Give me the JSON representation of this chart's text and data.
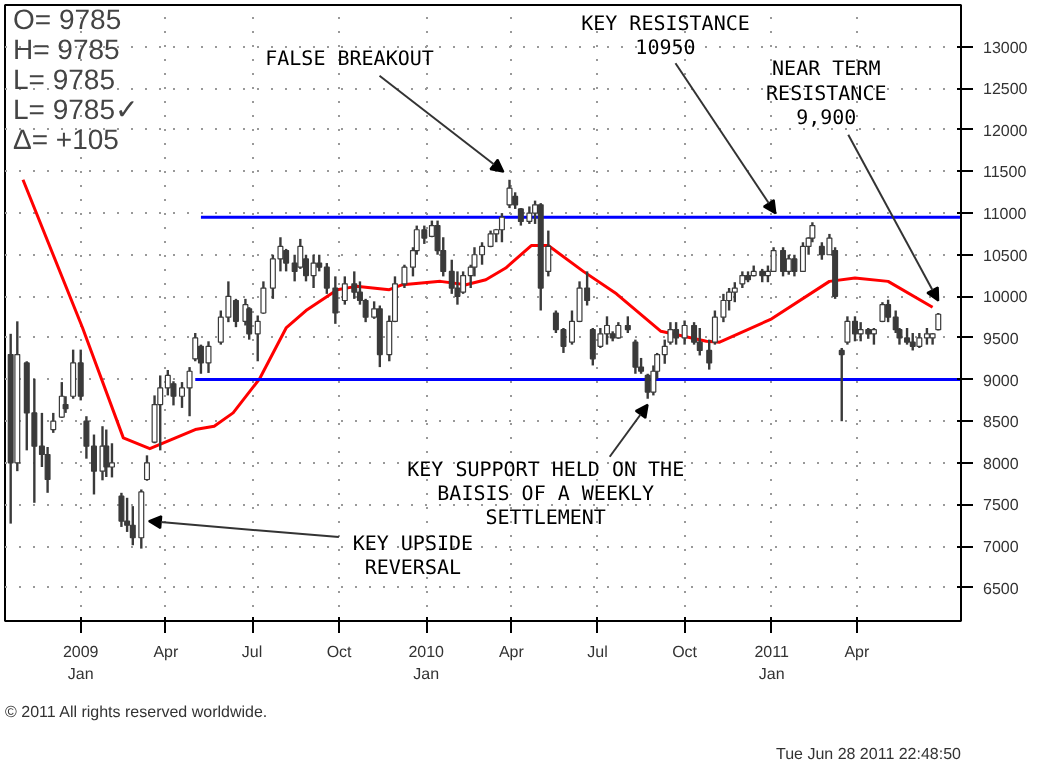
{
  "chart_data": {
    "type": "candlestick",
    "color": "#3a3a3a",
    "x": [
      "2008-10-19",
      "2008-10-26",
      "2008-11-05",
      "2008-11-13",
      "2008-11-21",
      "2008-11-27",
      "2008-12-03",
      "2008-12-12",
      "2008-12-16",
      "2008-12-24",
      "2009-01-01",
      "2009-01-07",
      "2009-01-15",
      "2009-01-24",
      "2009-01-28",
      "2009-02-03",
      "2009-02-13",
      "2009-02-19",
      "2009-02-25",
      "2009-03-06",
      "2009-03-12",
      "2009-03-20",
      "2009-03-26",
      "2009-04-03",
      "2009-04-09",
      "2009-04-18",
      "2009-04-26",
      "2009-05-02",
      "2009-05-08",
      "2009-05-16",
      "2009-05-29",
      "2009-06-06",
      "2009-06-14",
      "2009-06-24",
      "2009-06-28",
      "2009-07-07",
      "2009-07-13",
      "2009-07-23",
      "2009-07-31",
      "2009-08-06",
      "2009-08-15",
      "2009-08-21",
      "2009-08-27",
      "2009-09-04",
      "2009-09-10",
      "2009-09-18",
      "2009-09-27",
      "2009-10-07",
      "2009-10-17",
      "2009-10-23",
      "2009-10-29",
      "2009-11-07",
      "2009-11-13",
      "2009-11-23",
      "2009-11-29",
      "2009-12-09",
      "2009-12-18",
      "2009-12-22",
      "2009-12-30",
      "2010-01-07",
      "2010-01-13",
      "2010-01-19",
      "2010-01-28",
      "2010-02-03",
      "2010-02-09",
      "2010-02-17",
      "2010-02-21",
      "2010-03-01",
      "2010-03-10",
      "2010-03-16",
      "2010-03-22",
      "2010-03-30",
      "2010-04-05",
      "2010-04-11",
      "2010-04-20",
      "2010-04-26",
      "2010-05-02",
      "2010-05-10",
      "2010-05-18",
      "2010-05-26",
      "2010-06-04",
      "2010-06-12",
      "2010-06-20",
      "2010-06-26",
      "2010-07-04",
      "2010-07-11",
      "2010-07-17",
      "2010-07-23",
      "2010-08-02",
      "2010-08-10",
      "2010-08-16",
      "2010-08-23",
      "2010-08-29",
      "2010-09-02",
      "2010-09-10",
      "2010-09-16",
      "2010-09-22",
      "2010-10-01",
      "2010-10-11",
      "2010-10-17",
      "2010-10-27",
      "2010-11-02",
      "2010-11-11",
      "2010-11-17",
      "2010-11-23",
      "2010-12-01",
      "2010-12-07",
      "2010-12-13",
      "2010-12-22",
      "2010-12-28",
      "2011-01-03",
      "2011-01-13",
      "2011-01-19",
      "2011-01-25",
      "2011-02-03",
      "2011-02-09",
      "2011-02-13",
      "2011-02-23",
      "2011-03-03",
      "2011-03-09",
      "2011-03-16",
      "2011-03-22",
      "2011-03-30",
      "2011-04-05",
      "2011-04-13",
      "2011-04-19",
      "2011-04-28",
      "2011-05-04",
      "2011-05-12",
      "2011-05-16",
      "2011-05-24",
      "2011-05-30",
      "2011-06-06",
      "2011-06-14",
      "2011-06-20",
      "2011-06-26"
    ],
    "ohlc": [
      [
        9300,
        9550,
        7270,
        8000
      ],
      [
        8000,
        9700,
        7900,
        9300
      ],
      [
        9200,
        9220,
        8150,
        8600
      ],
      [
        8600,
        9010,
        7520,
        8200
      ],
      [
        8200,
        8600,
        7950,
        8100
      ],
      [
        8100,
        8190,
        7640,
        7800
      ],
      [
        8400,
        8600,
        8360,
        8500
      ],
      [
        8550,
        8970,
        8540,
        8800
      ],
      [
        8700,
        8800,
        8600,
        8650
      ],
      [
        8800,
        9360,
        8770,
        9200
      ],
      [
        9200,
        9360,
        8750,
        8800
      ],
      [
        8500,
        8560,
        8050,
        8200
      ],
      [
        8200,
        8340,
        7620,
        7900
      ],
      [
        7900,
        8440,
        7790,
        8200
      ],
      [
        8200,
        8400,
        7830,
        7950
      ],
      [
        7950,
        8235,
        7825,
        8000
      ],
      [
        7600,
        7640,
        7230,
        7300
      ],
      [
        7300,
        7580,
        7170,
        7250
      ],
      [
        7250,
        7480,
        7010,
        7100
      ],
      [
        7100,
        7680,
        6970,
        7650
      ],
      [
        7800,
        8090,
        7785,
        8000
      ],
      [
        8250,
        8810,
        8235,
        8700
      ],
      [
        8700,
        9050,
        8150,
        8900
      ],
      [
        8900,
        9115,
        8810,
        9050
      ],
      [
        8950,
        8980,
        8690,
        8800
      ],
      [
        8800,
        8970,
        8660,
        8900
      ],
      [
        8900,
        9150,
        8560,
        9100
      ],
      [
        9250,
        9560,
        9220,
        9500
      ],
      [
        9400,
        9420,
        9070,
        9200
      ],
      [
        9200,
        9460,
        9080,
        9400
      ],
      [
        9450,
        9830,
        9420,
        9750
      ],
      [
        9750,
        10180,
        9690,
        10000
      ],
      [
        9950,
        9970,
        9630,
        9700
      ],
      [
        9700,
        9970,
        9650,
        9900
      ],
      [
        9850,
        9870,
        9480,
        9550
      ],
      [
        9550,
        9770,
        9220,
        9700
      ],
      [
        9800,
        10180,
        9790,
        10100
      ],
      [
        10100,
        10500,
        9970,
        10450
      ],
      [
        10450,
        10710,
        10300,
        10600
      ],
      [
        10550,
        10570,
        10300,
        10400
      ],
      [
        10400,
        10500,
        10180,
        10300
      ],
      [
        10350,
        10690,
        10330,
        10600
      ],
      [
        10450,
        10500,
        10180,
        10250
      ],
      [
        10250,
        10500,
        10100,
        10400
      ],
      [
        10400,
        10500,
        10300,
        10350
      ],
      [
        10350,
        10400,
        10030,
        10100
      ],
      [
        10100,
        10240,
        9670,
        9800
      ],
      [
        9950,
        10240,
        9900,
        10150
      ],
      [
        10150,
        10300,
        9970,
        10050
      ],
      [
        10050,
        10180,
        9900,
        9950
      ],
      [
        9950,
        9970,
        9690,
        9750
      ],
      [
        9750,
        9940,
        9730,
        9850
      ],
      [
        9850,
        9890,
        9150,
        9300
      ],
      [
        9300,
        9770,
        9220,
        9700
      ],
      [
        9700,
        10240,
        9690,
        10150
      ],
      [
        10150,
        10380,
        10100,
        10350
      ],
      [
        10350,
        10590,
        10240,
        10550
      ],
      [
        10550,
        10850,
        10500,
        10800
      ],
      [
        10800,
        10850,
        10630,
        10700
      ],
      [
        10720,
        10910,
        10710,
        10850
      ],
      [
        10850,
        10910,
        10500,
        10550
      ],
      [
        10550,
        10710,
        10240,
        10300
      ],
      [
        10300,
        10440,
        10030,
        10100
      ],
      [
        10100,
        10300,
        9900,
        10000
      ],
      [
        10050,
        10300,
        10030,
        10250
      ],
      [
        10250,
        10380,
        10100,
        10350
      ],
      [
        10350,
        10590,
        10240,
        10500
      ],
      [
        10500,
        10650,
        10380,
        10600
      ],
      [
        10600,
        10790,
        10590,
        10750
      ],
      [
        10750,
        10810,
        10650,
        10800
      ],
      [
        10800,
        11000,
        10650,
        10950
      ],
      [
        11100,
        11400,
        11060,
        11300
      ],
      [
        11200,
        11250,
        11050,
        11100
      ],
      [
        11050,
        11060,
        10850,
        10900
      ],
      [
        10900,
        11080,
        10870,
        11000
      ],
      [
        11000,
        11150,
        10870,
        11100
      ],
      [
        11100,
        11120,
        9830,
        10100
      ],
      [
        10300,
        10790,
        10240,
        10600
      ],
      [
        9800,
        9830,
        9560,
        9600
      ],
      [
        9600,
        9620,
        9320,
        9400
      ],
      [
        9450,
        9830,
        9420,
        9700
      ],
      [
        9700,
        10180,
        9690,
        10100
      ],
      [
        10100,
        10300,
        9890,
        9950
      ],
      [
        9600,
        9620,
        9170,
        9250
      ],
      [
        9400,
        9620,
        9380,
        9550
      ],
      [
        9550,
        9760,
        9420,
        9650
      ],
      [
        9550,
        9580,
        9460,
        9500
      ],
      [
        9500,
        9690,
        9490,
        9650
      ],
      [
        9650,
        9760,
        9560,
        9600
      ],
      [
        9450,
        9480,
        9070,
        9150
      ],
      [
        9150,
        9260,
        9070,
        9100
      ],
      [
        9050,
        9070,
        8770,
        8850
      ],
      [
        8850,
        9170,
        8810,
        9100
      ],
      [
        9100,
        9320,
        9010,
        9300
      ],
      [
        9300,
        9480,
        9190,
        9400
      ],
      [
        9450,
        9690,
        9420,
        9600
      ],
      [
        9600,
        9690,
        9420,
        9500
      ],
      [
        9500,
        9710,
        9420,
        9650
      ],
      [
        9650,
        9690,
        9420,
        9450
      ],
      [
        9450,
        9620,
        9290,
        9350
      ],
      [
        9350,
        9480,
        9120,
        9200
      ],
      [
        9450,
        9830,
        9420,
        9750
      ],
      [
        9750,
        10030,
        9690,
        9950
      ],
      [
        9950,
        10100,
        9830,
        10050
      ],
      [
        10050,
        10170,
        9930,
        10100
      ],
      [
        10150,
        10300,
        10100,
        10250
      ],
      [
        10250,
        10300,
        10170,
        10200
      ],
      [
        10250,
        10370,
        10240,
        10300
      ],
      [
        10300,
        10330,
        10170,
        10250
      ],
      [
        10250,
        10370,
        10170,
        10300
      ],
      [
        10300,
        10590,
        10300,
        10550
      ],
      [
        10550,
        10590,
        10240,
        10300
      ],
      [
        10300,
        10500,
        10260,
        10450
      ],
      [
        10450,
        10500,
        10240,
        10300
      ],
      [
        10300,
        10650,
        10300,
        10600
      ],
      [
        10600,
        10710,
        10500,
        10700
      ],
      [
        10700,
        10890,
        10650,
        10850
      ],
      [
        10600,
        10650,
        10440,
        10500
      ],
      [
        10500,
        10750,
        10500,
        10700
      ],
      [
        10550,
        10590,
        9970,
        10000
      ],
      [
        9350,
        9380,
        8500,
        9300
      ],
      [
        9450,
        9760,
        9420,
        9700
      ],
      [
        9700,
        9760,
        9460,
        9550
      ],
      [
        9550,
        9690,
        9460,
        9600
      ],
      [
        9600,
        9620,
        9490,
        9550
      ],
      [
        9550,
        9620,
        9420,
        9600
      ],
      [
        9700,
        9930,
        9690,
        9900
      ],
      [
        9900,
        9960,
        9690,
        9750
      ],
      [
        9750,
        9830,
        9560,
        9600
      ],
      [
        9600,
        9620,
        9420,
        9500
      ],
      [
        9500,
        9620,
        9420,
        9450
      ],
      [
        9450,
        9560,
        9350,
        9400
      ],
      [
        9400,
        9560,
        9380,
        9500
      ],
      [
        9500,
        9620,
        9420,
        9550
      ],
      [
        9500,
        9560,
        9420,
        9550
      ],
      [
        9600,
        9800,
        9590,
        9785
      ]
    ],
    "series": [
      {
        "type": "line",
        "color": "#ff0000",
        "x": [
          "2008-11-01",
          "2009-01-03",
          "2009-02-15",
          "2009-03-15",
          "2009-05-02",
          "2009-05-22",
          "2009-06-11",
          "2009-07-09",
          "2009-08-06",
          "2009-08-27",
          "2009-09-29",
          "2009-10-19",
          "2009-11-23",
          "2009-12-07",
          "2010-01-16",
          "2010-02-12",
          "2010-03-05",
          "2010-03-26",
          "2010-04-22",
          "2010-05-10",
          "2010-06-16",
          "2010-07-21",
          "2010-09-06",
          "2010-10-24",
          "2010-11-07",
          "2011-01-01",
          "2011-03-03",
          "2011-03-30",
          "2011-05-04",
          "2011-06-20"
        ],
        "values": [
          11400,
          9620,
          8300,
          8170,
          8400,
          8440,
          8600,
          9010,
          9620,
          9830,
          10080,
          10120,
          10080,
          10140,
          10180,
          10140,
          10200,
          10340,
          10610,
          10610,
          10300,
          10030,
          9580,
          9460,
          9450,
          9730,
          10180,
          10220,
          10180,
          9870
        ]
      },
      {
        "type": "line",
        "color": "#0000ff",
        "x": [
          "2009-05-08",
          "2011-07-20"
        ],
        "values": [
          10950,
          10950
        ]
      },
      {
        "type": "line",
        "color": "#0000ff",
        "x": [
          "2009-05-02",
          "2011-07-20"
        ],
        "values": [
          9000,
          9000
        ]
      }
    ],
    "xlim": [
      "2008-10-13",
      "2011-07-20"
    ],
    "xticks": [
      {
        "value": "2009-01-01",
        "label": "2009\nJan"
      },
      {
        "value": "2009-04-01",
        "label": "Apr"
      },
      {
        "value": "2009-07-01",
        "label": "Jul"
      },
      {
        "value": "2009-10-01",
        "label": "Oct"
      },
      {
        "value": "2010-01-01",
        "label": "2010\nJan"
      },
      {
        "value": "2010-04-01",
        "label": "Apr"
      },
      {
        "value": "2010-07-01",
        "label": "Jul"
      },
      {
        "value": "2010-10-01",
        "label": "Oct"
      },
      {
        "value": "2011-01-01",
        "label": "2011\nJan"
      },
      {
        "value": "2011-04-01",
        "label": "Apr"
      }
    ],
    "ylim": [
      6100,
      13500
    ],
    "yticks": [
      6500,
      7000,
      7500,
      8000,
      8500,
      9000,
      9500,
      10000,
      10500,
      11000,
      11500,
      12000,
      12500,
      13000
    ],
    "grid": true,
    "annotations": [
      "O=  9785",
      "H=  9785",
      "L=  9785",
      "L=  9785✓",
      "Δ=  +105",
      "© 2011 All rights reserved worldwide.",
      "Tue Jun 28 2011 22:48:50",
      {
        "text": "FALSE BREAKOUT",
        "x": "2010-03-30",
        "y": 11400
      },
      {
        "text": "KEY RESISTANCE\n10950",
        "x": "2011-01-05",
        "y": 10950
      },
      {
        "text": "NEAR TERM\nRESISTANCE\n9,900",
        "x": "2011-06-26",
        "y": 9900
      },
      {
        "text": "KEY SUPPORT HELD ON THE\nBAISIS OF A WEEKLY\nSETTLEMENT",
        "x": "2010-08-23",
        "y": 8770
      },
      {
        "text": "KEY UPSIDE\nREVERSAL",
        "x": "2009-03-14",
        "y": 7300
      }
    ]
  }
}
